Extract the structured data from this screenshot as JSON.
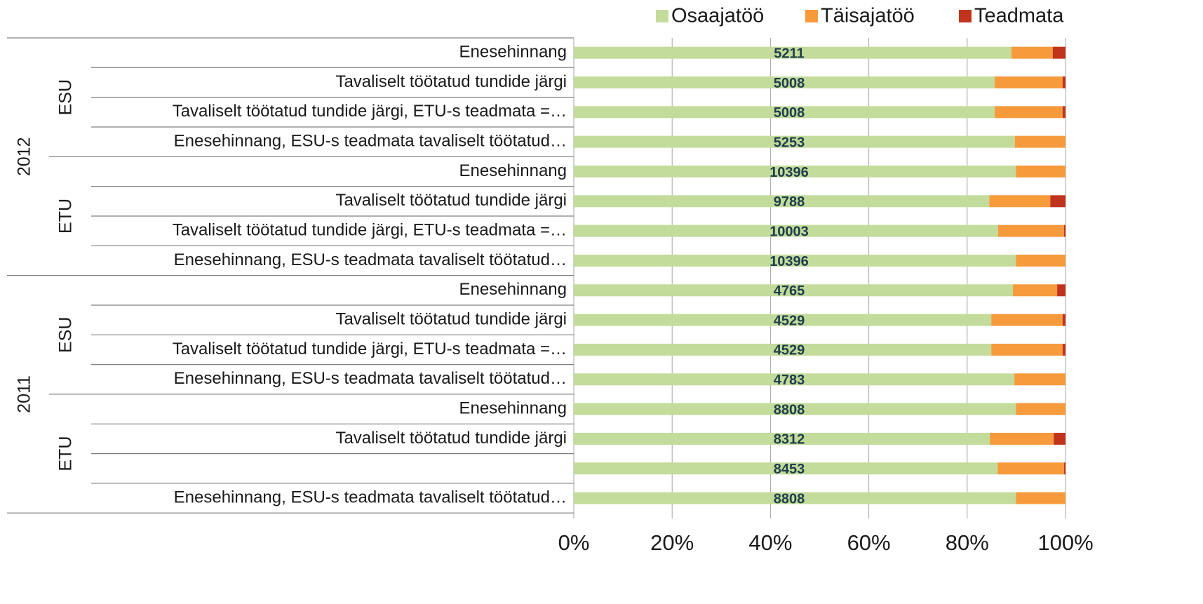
{
  "chart_data": {
    "type": "stacked_barh",
    "categories": [
      "Enesehinnang",
      "Tavaliselt töötatud tundide järgi",
      "Tavaliselt töötatud tundide järgi, ETU-s teadmata =…",
      "Enesehinnang, ESU-s teadmata tavaliselt töötatud…",
      "Enesehinnang",
      "Tavaliselt töötatud tundide järgi",
      "Tavaliselt töötatud tundide järgi, ETU-s teadmata =…",
      "Enesehinnang, ESU-s teadmata tavaliselt töötatud…",
      "Enesehinnang",
      "Tavaliselt töötatud tundide järgi",
      "Tavaliselt töötatud tundide järgi, ETU-s teadmata =…",
      "Enesehinnang, ESU-s teadmata tavaliselt töötatud…",
      "Enesehinnang",
      "Tavaliselt töötatud tundide järgi",
      null,
      "Enesehinnang, ESU-s teadmata tavaliselt töötatud…"
    ],
    "groups": [
      {
        "label": "2012",
        "subgroups": [
          "ESU",
          "ETU"
        ]
      },
      {
        "label": "2011",
        "subgroups": [
          "ESU",
          "ETU"
        ]
      }
    ],
    "series": [
      {
        "name": "Osaajatöö",
        "color": "#c3dc9b",
        "values": [
          89.0,
          85.6,
          85.6,
          89.7,
          89.9,
          84.5,
          86.3,
          89.9,
          89.3,
          84.9,
          84.9,
          89.6,
          89.9,
          84.6,
          86.2,
          89.9
        ]
      },
      {
        "name": "Täisajatöö",
        "color": "#f79a3c",
        "values": [
          8.4,
          13.8,
          13.8,
          10.3,
          10.1,
          12.4,
          13.4,
          10.1,
          9.0,
          14.5,
          14.5,
          10.4,
          10.1,
          13.0,
          13.5,
          10.1
        ]
      },
      {
        "name": "Teadmata",
        "color": "#c0341d",
        "values": [
          2.6,
          0.6,
          0.6,
          0,
          0,
          3.1,
          0.3,
          0,
          1.7,
          0.6,
          0.6,
          0,
          0,
          2.4,
          0.3,
          0
        ]
      }
    ],
    "counts": [
      5211,
      5008,
      5008,
      5253,
      10396,
      9788,
      10003,
      10396,
      4765,
      4529,
      4529,
      4783,
      8808,
      8312,
      8453,
      8808
    ],
    "xlim": [
      0,
      100
    ],
    "xticks": [
      {
        "value": 0,
        "label": "0%"
      },
      {
        "value": 20,
        "label": "20%"
      },
      {
        "value": 40,
        "label": "40%"
      },
      {
        "value": 60,
        "label": "60%"
      },
      {
        "value": 80,
        "label": "80%"
      },
      {
        "value": 100,
        "label": "100%"
      }
    ],
    "grid": true,
    "legend": "top-right"
  }
}
